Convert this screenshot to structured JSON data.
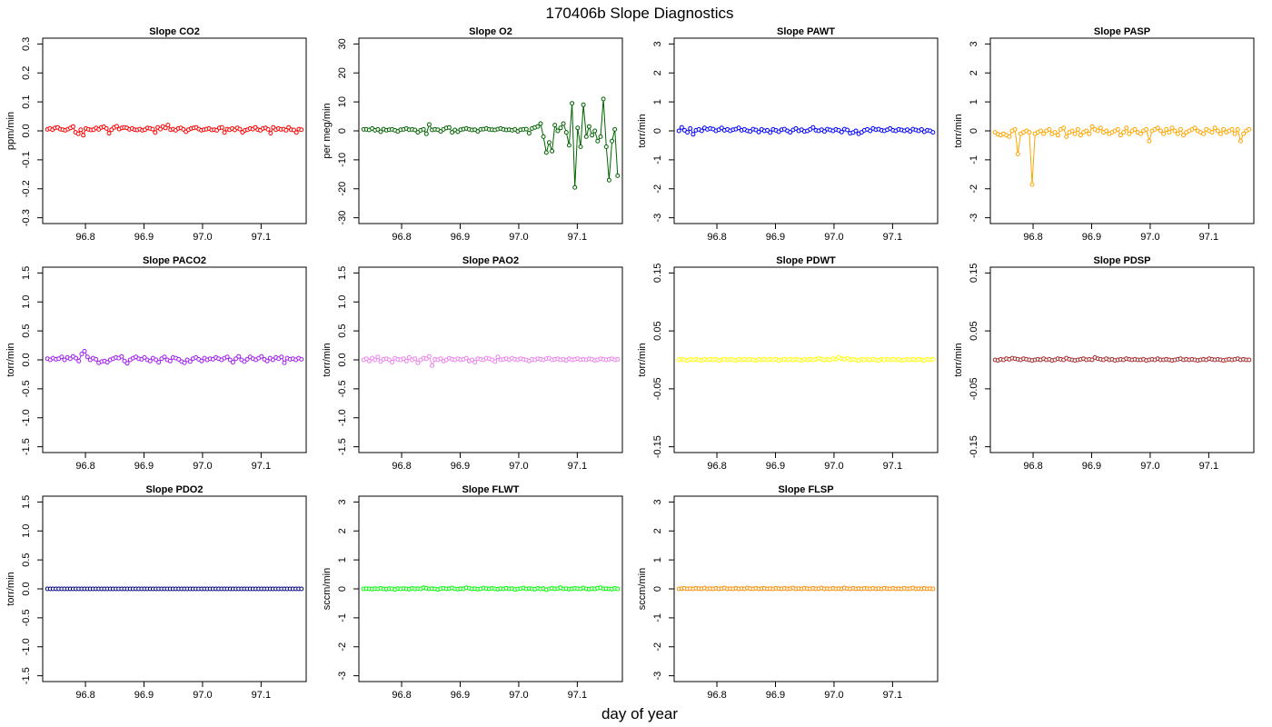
{
  "figure": {
    "title": "170406b   Slope Diagnostics",
    "xlabel": "day of year"
  },
  "chart_data": [
    {
      "type": "line",
      "title": "Slope CO2",
      "ylabel": "ppm/min",
      "color": "#ff0000",
      "xlim": [
        96.727,
        97.177
      ],
      "ylim": [
        -0.32,
        0.32
      ],
      "xticks": [
        "96.8",
        "96.9",
        "97.0",
        "97.1"
      ],
      "yticks": [
        "-0.3",
        "-0.2",
        "-0.1",
        "0.0",
        "0.1",
        "0.2",
        "0.3"
      ],
      "x_range": [
        96.735,
        97.169
      ],
      "values": [
        0.005,
        0.008,
        0.004,
        0.01,
        0.012,
        0.006,
        0.004,
        0.002,
        0.006,
        0.01,
        0.015,
        -0.005,
        -0.01,
        0.004,
        -0.015,
        0.008,
        0.005,
        0.003,
        0.004,
        0.01,
        0.005,
        0.012,
        0.014,
        0.008,
        -0.008,
        0.004,
        0.012,
        0.016,
        0.006,
        0.01,
        0.012,
        0.01,
        0.005,
        0.008,
        0.004,
        0.003,
        0.006,
        0.002,
        0.004,
        0.01,
        0.008,
        0.006,
        -0.006,
        0.012,
        0.006,
        0.015,
        0.01,
        0.02,
        0.004,
        0.006,
        0.002,
        0.008,
        0.01,
        0.005,
        -0.003,
        0.004,
        0.008,
        0.01,
        0.012,
        0.006,
        0.002,
        0.004,
        0.006,
        0.008,
        0.003,
        0.004,
        0.002,
        0.01,
        0.012,
        -0.006,
        0.006,
        0.004,
        0.008,
        0.003,
        0.01,
        0.006,
        -0.005,
        0.002,
        0.004,
        0.008,
        0.006,
        0.012,
        0.004,
        0.002,
        0.008,
        0.01,
        0.005,
        -0.008,
        0.012,
        0.004,
        0.008,
        0.005,
        0.006,
        0.002,
        0.012,
        0.004,
        0.003,
        -0.006,
        0.006,
        0.004
      ]
    },
    {
      "type": "line",
      "title": "Slope O2",
      "ylabel": "per meg/min",
      "color": "#006400",
      "xlim": [
        96.727,
        97.177
      ],
      "ylim": [
        -32,
        32
      ],
      "xticks": [
        "96.8",
        "96.9",
        "97.0",
        "97.1"
      ],
      "yticks": [
        "-30",
        "-20",
        "-10",
        "0",
        "10",
        "20",
        "30"
      ],
      "x_range": [
        96.735,
        97.169
      ],
      "values": [
        0.5,
        0.5,
        0.3,
        0.8,
        0.2,
        0.5,
        -0.3,
        0.6,
        0.2,
        0.4,
        0.5,
        0.2,
        -0.2,
        0.4,
        0.5,
        0.8,
        0.4,
        0.5,
        0.3,
        -0.5,
        0.2,
        0.5,
        -1.0,
        2.2,
        0.3,
        0.5,
        0.4,
        -0.2,
        0.5,
        1.0,
        1.2,
        -0.5,
        0.3,
        -0.3,
        0.4,
        0.6,
        0.8,
        0.5,
        0.3,
        0.4,
        -0.2,
        0.5,
        0.6,
        0.8,
        0.5,
        0.4,
        0.3,
        0.6,
        0.8,
        0.5,
        0.3,
        0.4,
        0.2,
        0.5,
        -0.2,
        0.4,
        0.5,
        0.6,
        -0.8,
        0.8,
        1.2,
        1.5,
        2.5,
        -2.0,
        -7.5,
        -4.0,
        -7.0,
        2.0,
        0.0,
        1.0,
        2.5,
        -0.5,
        -5.0,
        9.5,
        -19.5,
        1.0,
        -5.5,
        9.0,
        -2.0,
        1.5,
        -1.5,
        0.0,
        -3.5,
        -2.0,
        11.0,
        -5.5,
        -17.0,
        -3.5,
        0.5,
        -15.5
      ]
    },
    {
      "type": "line",
      "title": "Slope PAWT",
      "ylabel": "torr/min",
      "color": "#0000ff",
      "xlim": [
        96.727,
        97.177
      ],
      "ylim": [
        -3.2,
        3.2
      ],
      "xticks": [
        "96.8",
        "96.9",
        "97.0",
        "97.1"
      ],
      "yticks": [
        "-3",
        "-2",
        "-1",
        "0",
        "1",
        "2",
        "3"
      ],
      "x_range": [
        96.735,
        97.169
      ],
      "values": [
        0.0,
        0.12,
        0.02,
        -0.05,
        0.08,
        -0.12,
        0.02,
        0.05,
        0.0,
        0.1,
        0.05,
        0.08,
        0.06,
        0.0,
        0.04,
        0.1,
        0.02,
        0.05,
        0.0,
        0.04,
        0.06,
        0.1,
        0.02,
        0.05,
        0.0,
        -0.02,
        0.06,
        0.03,
        -0.04,
        0.05,
        0.0,
        0.02,
        -0.06,
        0.05,
        0.02,
        -0.03,
        0.04,
        0.06,
        0.0,
        -0.05,
        0.03,
        0.08,
        0.0,
        0.04,
        -0.02,
        0.0,
        0.05,
        0.12,
        0.02,
        0.0,
        0.04,
        -0.02,
        0.06,
        0.03,
        0.0,
        0.05,
        0.02,
        -0.04,
        0.06,
        0.03,
        -0.08,
        -0.06,
        0.0,
        -0.1,
        -0.05,
        0.02,
        0.05,
        0.0,
        0.08,
        0.04,
        0.06,
        0.02,
        0.0,
        0.04,
        0.08,
        0.02,
        0.0,
        0.05,
        0.03,
        0.0,
        0.04,
        -0.02,
        0.06,
        0.03,
        0.0,
        0.05,
        -0.03,
        0.02,
        0.0,
        -0.05
      ]
    },
    {
      "type": "line",
      "title": "Slope PASP",
      "ylabel": "torr/min",
      "color": "#ffa500",
      "xlim": [
        96.727,
        97.177
      ],
      "ylim": [
        -3.2,
        3.2
      ],
      "xticks": [
        "96.8",
        "96.9",
        "97.0",
        "97.1"
      ],
      "yticks": [
        "-3",
        "-2",
        "-1",
        "0",
        "1",
        "2",
        "3"
      ],
      "x_range": [
        96.735,
        97.169
      ],
      "values": [
        -0.05,
        -0.12,
        -0.15,
        -0.1,
        -0.15,
        -0.2,
        0.0,
        0.05,
        -0.8,
        -0.1,
        -0.05,
        0.0,
        -0.05,
        -1.85,
        -0.1,
        -0.05,
        0.0,
        -0.1,
        0.0,
        0.05,
        -0.1,
        -0.05,
        -0.15,
        0.05,
        0.1,
        -0.2,
        -0.05,
        0.0,
        -0.1,
        0.05,
        -0.15,
        -0.05,
        0.0,
        -0.1,
        0.15,
        0.05,
        0.0,
        0.1,
        -0.05,
        0.0,
        -0.1,
        -0.05,
        0.0,
        0.05,
        -0.15,
        -0.05,
        0.1,
        -0.1,
        0.0,
        0.05,
        -0.05,
        -0.1,
        0.0,
        0.05,
        -0.35,
        0.0,
        0.05,
        0.1,
        0.0,
        -0.1,
        0.05,
        -0.05,
        0.1,
        0.0,
        -0.1,
        0.05,
        -0.15,
        -0.05,
        0.0,
        0.05,
        0.1,
        0.0,
        -0.05,
        -0.1,
        0.05,
        0.0,
        -0.05,
        0.1,
        0.0,
        -0.1,
        0.05,
        -0.05,
        0.0,
        0.05,
        -0.1,
        0.05,
        -0.35,
        -0.1,
        0.0,
        0.05
      ]
    },
    {
      "type": "line",
      "title": "Slope PACO2",
      "ylabel": "torr/min",
      "color": "#a020f0",
      "xlim": [
        96.727,
        97.177
      ],
      "ylim": [
        -1.6,
        1.6
      ],
      "xticks": [
        "96.8",
        "96.9",
        "97.0",
        "97.1"
      ],
      "yticks": [
        "-1.5",
        "-1.0",
        "-0.5",
        "0.0",
        "0.5",
        "1.0",
        "1.5"
      ],
      "x_range": [
        96.735,
        97.169
      ],
      "values": [
        0.02,
        0.0,
        0.03,
        0.01,
        0.02,
        0.05,
        0.0,
        0.04,
        0.02,
        0.06,
        0.03,
        -0.02,
        0.1,
        0.15,
        0.05,
        0.0,
        0.03,
        0.01,
        -0.05,
        -0.03,
        -0.02,
        -0.04,
        0.0,
        0.02,
        0.04,
        0.03,
        0.06,
        -0.02,
        -0.06,
        0.0,
        0.03,
        0.05,
        0.02,
        0.01,
        0.04,
        0.0,
        -0.02,
        0.03,
        0.0,
        -0.04,
        0.02,
        0.05,
        0.0,
        -0.02,
        0.04,
        0.03,
        0.01,
        -0.03,
        -0.05,
        0.0,
        -0.03,
        0.02,
        0.04,
        0.01,
        -0.02,
        0.03,
        0.0,
        0.02,
        0.01,
        0.04,
        0.02,
        0.0,
        0.03,
        0.05,
        0.0,
        -0.04,
        0.02,
        0.06,
        0.0,
        -0.03,
        0.01,
        0.05,
        0.02,
        0.0,
        0.03,
        0.06,
        0.01,
        -0.02,
        0.03,
        0.0,
        0.04,
        0.02,
        0.05,
        -0.05,
        0.03,
        0.01,
        0.02,
        0.0,
        0.03,
        0.01
      ]
    },
    {
      "type": "line",
      "title": "Slope PAO2",
      "ylabel": "torr/min",
      "color": "#ee82ee",
      "xlim": [
        96.727,
        97.177
      ],
      "ylim": [
        -1.6,
        1.6
      ],
      "xticks": [
        "96.8",
        "96.9",
        "97.0",
        "97.1"
      ],
      "yticks": [
        "-1.5",
        "-1.0",
        "-0.5",
        "0.0",
        "0.5",
        "1.0",
        "1.5"
      ],
      "x_range": [
        96.735,
        97.169
      ],
      "values": [
        0.0,
        0.02,
        -0.02,
        0.03,
        0.0,
        0.05,
        -0.03,
        0.01,
        0.02,
        0.0,
        -0.04,
        0.03,
        0.01,
        0.0,
        0.02,
        -0.02,
        0.04,
        0.0,
        0.02,
        -0.05,
        0.0,
        0.03,
        0.02,
        0.06,
        -0.1,
        0.01,
        0.0,
        0.02,
        -0.02,
        0.0,
        0.03,
        0.01,
        0.0,
        0.02,
        0.0,
        0.01,
        0.03,
        -0.02,
        0.0,
        -0.04,
        0.02,
        0.01,
        0.0,
        0.03,
        0.02,
        0.0,
        -0.03,
        0.05,
        0.0,
        0.01,
        0.02,
        0.0,
        0.03,
        0.01,
        0.0,
        0.02,
        0.01,
        0.0,
        -0.02,
        0.01,
        0.0,
        0.02,
        0.01,
        0.0,
        0.02,
        0.03,
        0.0,
        0.01,
        0.02,
        0.0,
        0.01,
        -0.01,
        0.02,
        0.0,
        0.01,
        0.02,
        0.0,
        0.01,
        0.0,
        0.02,
        0.01,
        -0.01,
        0.0,
        0.02,
        0.01,
        0.0,
        0.01,
        0.02,
        0.0,
        0.01
      ]
    },
    {
      "type": "line",
      "title": "Slope PDWT",
      "ylabel": "torr/min",
      "color": "#ffff00",
      "xlim": [
        96.727,
        97.177
      ],
      "ylim": [
        -0.16,
        0.16
      ],
      "xticks": [
        "96.8",
        "96.9",
        "97.0",
        "97.1"
      ],
      "yticks": [
        "-0.15",
        "-0.05",
        "0.05",
        "0.15"
      ],
      "x_range": [
        96.735,
        97.169
      ],
      "values": [
        0.0,
        0.001,
        0.0,
        -0.001,
        0.001,
        0.0,
        0.001,
        0.0,
        -0.001,
        0.001,
        0.0,
        0.001,
        0.0,
        0.001,
        -0.001,
        0.0,
        0.001,
        0.0,
        0.001,
        0.0,
        -0.001,
        0.001,
        0.0,
        0.001,
        0.0,
        0.001,
        0.0,
        -0.001,
        0.001,
        0.0,
        0.001,
        0.0,
        0.001,
        0.0,
        0.001,
        -0.001,
        0.0,
        0.001,
        0.0,
        0.001,
        0.0,
        0.001,
        0.0,
        -0.001,
        0.001,
        0.0,
        0.001,
        0.0,
        0.001,
        0.003,
        0.001,
        0.0,
        0.001,
        0.0,
        0.002,
        0.001,
        0.004,
        0.002,
        0.001,
        0.003,
        0.0,
        0.001,
        0.0,
        -0.001,
        0.001,
        0.0,
        0.001,
        0.0,
        0.001,
        0.0,
        -0.001,
        0.001,
        0.0,
        0.001,
        0.0,
        0.001,
        0.0,
        0.001,
        -0.001,
        0.0,
        0.001,
        0.0,
        0.001,
        0.0,
        0.001,
        0.0,
        -0.001,
        0.001,
        0.0,
        0.001
      ]
    },
    {
      "type": "line",
      "title": "Slope PDSP",
      "ylabel": "torr/min",
      "color": "#a52a2a",
      "xlim": [
        96.727,
        97.177
      ],
      "ylim": [
        -0.16,
        0.16
      ],
      "xticks": [
        "96.8",
        "96.9",
        "97.0",
        "97.1"
      ],
      "yticks": [
        "-0.15",
        "-0.05",
        "0.05",
        "0.15"
      ],
      "x_range": [
        96.735,
        97.169
      ],
      "values": [
        0.0,
        -0.001,
        0.001,
        0.0,
        0.002,
        0.001,
        0.003,
        0.002,
        0.001,
        0.0,
        0.002,
        0.001,
        0.0,
        -0.001,
        0.0,
        0.001,
        0.0,
        0.002,
        0.0,
        0.001,
        -0.001,
        0.0,
        0.002,
        0.001,
        0.0,
        0.003,
        0.001,
        0.0,
        -0.001,
        0.0,
        0.001,
        0.002,
        0.0,
        0.001,
        0.0,
        0.004,
        0.002,
        0.001,
        0.0,
        0.002,
        0.0,
        0.001,
        -0.001,
        0.0,
        0.001,
        0.0,
        0.002,
        0.001,
        0.0,
        0.001,
        0.0,
        0.0,
        0.001,
        -0.001,
        0.0,
        0.001,
        0.0,
        0.002,
        0.0,
        0.0,
        0.001,
        0.0,
        -0.001,
        0.0,
        0.001,
        0.002,
        0.0,
        0.001,
        0.0,
        0.001,
        0.0,
        -0.001,
        0.0,
        0.001,
        0.0,
        0.002,
        0.001,
        0.0,
        0.001,
        0.0,
        -0.001,
        0.0,
        0.001,
        0.0,
        0.001,
        0.002,
        0.0,
        0.001,
        0.0,
        0.0
      ]
    },
    {
      "type": "line",
      "title": "Slope PDO2",
      "ylabel": "torr/min",
      "color": "#000080",
      "xlim": [
        96.727,
        97.177
      ],
      "ylim": [
        -1.6,
        1.6
      ],
      "xticks": [
        "96.8",
        "96.9",
        "97.0",
        "97.1"
      ],
      "yticks": [
        "-1.5",
        "-1.0",
        "-0.5",
        "0.0",
        "0.5",
        "1.0",
        "1.5"
      ],
      "x_range": [
        96.735,
        97.169
      ],
      "values": [
        0,
        0,
        0,
        0,
        0,
        0,
        0,
        0,
        0,
        0,
        0,
        0,
        0,
        0,
        0,
        0,
        0,
        0,
        0,
        0,
        0,
        0,
        0,
        0,
        0,
        0,
        0,
        0,
        0,
        0,
        0,
        0,
        0,
        0,
        0,
        0,
        0,
        0,
        0,
        0,
        0,
        0,
        0,
        0,
        0,
        0,
        0,
        0,
        0,
        0,
        0,
        0,
        0,
        0,
        0,
        0,
        0,
        0,
        0,
        0,
        0,
        0,
        0,
        0,
        0,
        0,
        0,
        0,
        0,
        0,
        0,
        0,
        0,
        0,
        0,
        0,
        0,
        0,
        0,
        0,
        0,
        0,
        0,
        0,
        0,
        0,
        0,
        0,
        0,
        0
      ]
    },
    {
      "type": "line",
      "title": "Slope FLWT",
      "ylabel": "sccm/min",
      "color": "#00ff00",
      "xlim": [
        96.727,
        97.177
      ],
      "ylim": [
        -3.2,
        3.2
      ],
      "xticks": [
        "96.8",
        "96.9",
        "97.0",
        "97.1"
      ],
      "yticks": [
        "-3",
        "-2",
        "-1",
        "0",
        "1",
        "2",
        "3"
      ],
      "x_range": [
        96.735,
        97.169
      ],
      "values": [
        0.0,
        0.01,
        0.0,
        -0.01,
        0.01,
        0.0,
        0.02,
        0.0,
        -0.01,
        0.01,
        0.0,
        -0.02,
        0.01,
        0.0,
        0.01,
        0.0,
        -0.01,
        0.02,
        0.0,
        0.01,
        0.0,
        0.04,
        0.02,
        0.0,
        0.01,
        0.0,
        -0.02,
        0.01,
        0.02,
        0.0,
        0.01,
        0.03,
        0.0,
        -0.01,
        0.01,
        0.0,
        0.04,
        0.02,
        0.0,
        0.01,
        -0.01,
        0.0,
        0.03,
        0.01,
        0.0,
        0.02,
        0.0,
        -0.01,
        0.01,
        0.0,
        0.02,
        0.0,
        0.01,
        -0.02,
        0.0,
        0.01,
        0.03,
        0.0,
        0.01,
        0.0,
        -0.01,
        0.02,
        0.0,
        0.01,
        -0.03,
        0.0,
        0.02,
        0.0,
        0.01,
        0.04,
        0.0,
        0.01,
        -0.01,
        0.0,
        0.02,
        0.01,
        0.0,
        0.03,
        0.0,
        -0.01,
        0.01,
        0.0,
        0.02,
        0.04,
        0.0,
        0.01,
        0.0,
        -0.01,
        0.02,
        0.0
      ]
    },
    {
      "type": "line",
      "title": "Slope FLSP",
      "ylabel": "sccm/min",
      "color": "#ff8c00",
      "xlim": [
        96.727,
        97.177
      ],
      "ylim": [
        -3.2,
        3.2
      ],
      "xticks": [
        "96.8",
        "96.9",
        "97.0",
        "97.1"
      ],
      "yticks": [
        "-3",
        "-2",
        "-1",
        "0",
        "1",
        "2",
        "3"
      ],
      "x_range": [
        96.735,
        97.169
      ],
      "values": [
        0.0,
        0.01,
        0.02,
        0.0,
        0.01,
        0.0,
        0.02,
        0.01,
        0.0,
        0.03,
        0.0,
        0.01,
        0.0,
        0.02,
        0.0,
        0.01,
        0.03,
        0.0,
        0.01,
        0.0,
        0.02,
        0.0,
        0.01,
        0.0,
        0.03,
        0.01,
        0.0,
        0.02,
        0.0,
        0.01,
        0.02,
        0.0,
        0.01,
        0.0,
        0.02,
        0.01,
        0.0,
        0.02,
        0.0,
        0.01,
        0.03,
        0.0,
        0.01,
        0.0,
        0.02,
        0.01,
        0.0,
        0.02,
        0.0,
        0.01,
        0.03,
        0.0,
        0.01,
        0.0,
        0.02,
        0.0,
        0.01,
        0.0,
        0.03,
        0.01,
        0.0,
        0.02,
        0.0,
        0.01,
        0.0,
        0.02,
        0.01,
        0.0,
        0.02,
        0.0,
        0.01,
        0.0,
        0.02,
        0.01,
        0.0,
        0.02,
        0.0,
        0.01,
        0.0,
        0.02,
        0.0,
        0.01,
        0.03,
        0.0,
        0.01,
        0.0,
        0.02,
        0.0,
        0.01,
        0.0
      ]
    }
  ]
}
